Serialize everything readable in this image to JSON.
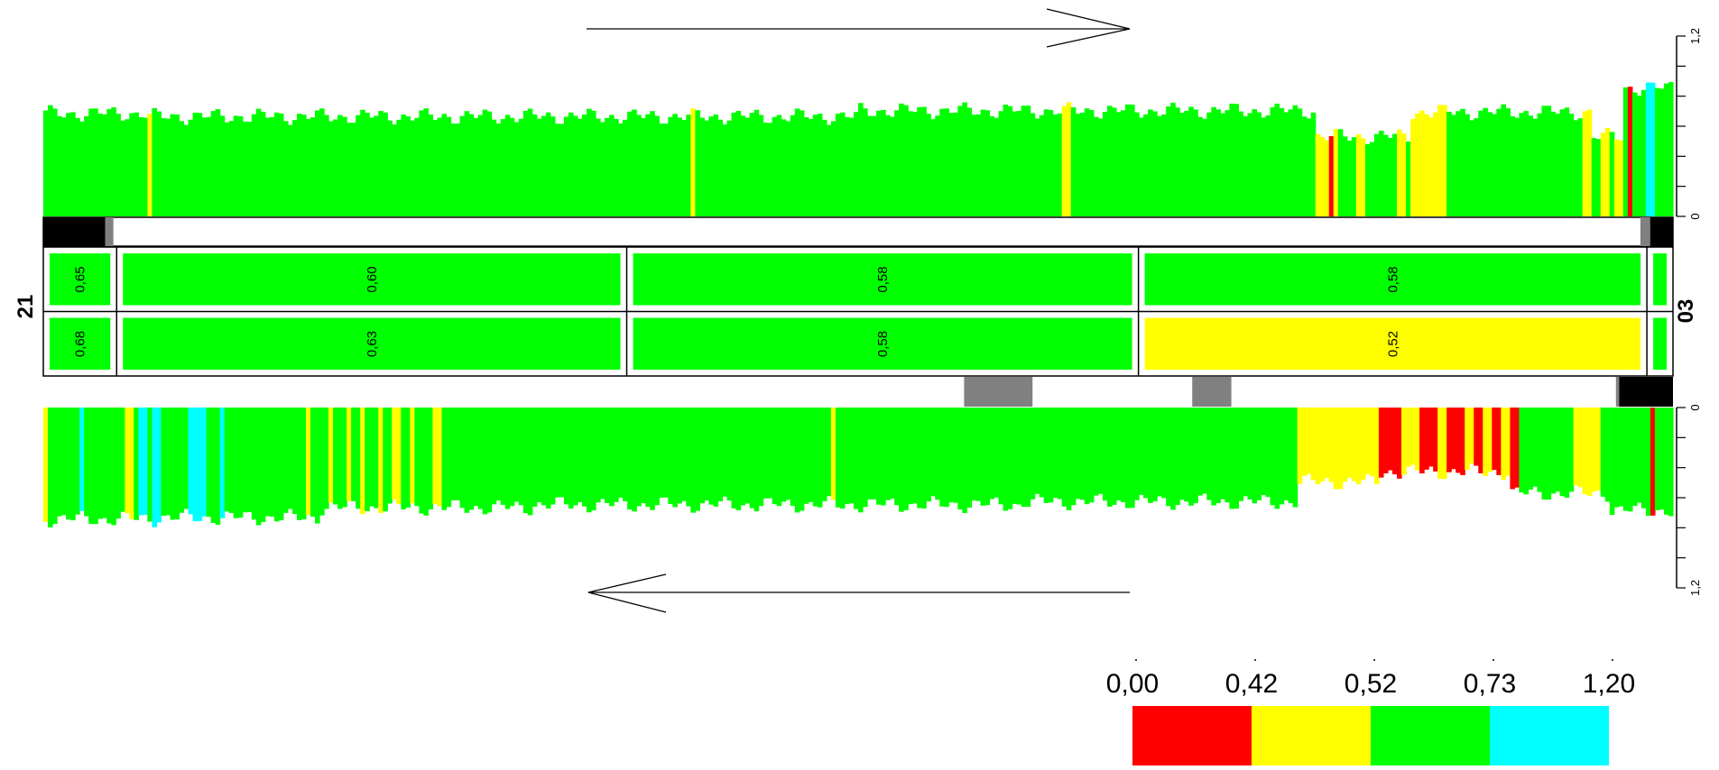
{
  "chart_data": {
    "type": "bar",
    "chromosome_labels": {
      "left": "21",
      "right": "03"
    },
    "colors": {
      "red": "#ff0000",
      "yellow": "#ffff00",
      "green": "#00ff00",
      "cyan": "#00ffff",
      "gray": "#808080",
      "black": "#000000"
    },
    "scale": {
      "breaks": [
        "0,00",
        "0,42",
        "0,52",
        "0,73",
        "1,20"
      ],
      "values": [
        0.0,
        0.42,
        0.52,
        0.73,
        1.2
      ],
      "colors": [
        "#ff0000",
        "#ffff00",
        "#00ff00",
        "#00ffff"
      ]
    },
    "axis": {
      "ylim": [
        0,
        1.2
      ],
      "ticks": [
        0,
        1.2
      ],
      "tick_labels": [
        "0",
        "1,2"
      ]
    },
    "top_strand": {
      "direction": "right",
      "n": 360,
      "segments": [
        {
          "from": 0.0,
          "to": 0.065,
          "level": 0.72
        },
        {
          "from": 0.065,
          "to": 0.5,
          "level": 0.7
        },
        {
          "from": 0.5,
          "to": 0.78,
          "level": 0.74
        },
        {
          "from": 0.78,
          "to": 0.84,
          "level": 0.56
        },
        {
          "from": 0.84,
          "to": 0.95,
          "level": 0.73
        },
        {
          "from": 0.95,
          "to": 0.97,
          "level": 0.56
        },
        {
          "from": 0.97,
          "to": 1.0,
          "level": 0.9
        }
      ],
      "bands": [
        {
          "from": 0.063,
          "to": 0.066,
          "color": "yellow"
        },
        {
          "from": 0.396,
          "to": 0.4,
          "color": "yellow"
        },
        {
          "from": 0.626,
          "to": 0.63,
          "color": "yellow"
        },
        {
          "from": 0.78,
          "to": 0.795,
          "color": "yellow"
        },
        {
          "from": 0.788,
          "to": 0.791,
          "color": "red"
        },
        {
          "from": 0.805,
          "to": 0.81,
          "color": "yellow"
        },
        {
          "from": 0.83,
          "to": 0.836,
          "color": "yellow"
        },
        {
          "from": 0.84,
          "to": 0.862,
          "color": "yellow"
        },
        {
          "from": 0.945,
          "to": 0.95,
          "color": "yellow"
        },
        {
          "from": 0.955,
          "to": 0.96,
          "color": "yellow"
        },
        {
          "from": 0.963,
          "to": 0.97,
          "color": "yellow"
        },
        {
          "from": 0.972,
          "to": 0.976,
          "color": "red"
        },
        {
          "from": 0.982,
          "to": 0.988,
          "color": "cyan"
        }
      ]
    },
    "bottom_strand": {
      "direction": "left",
      "n": 360,
      "segments": [
        {
          "from": 0.0,
          "to": 0.07,
          "level": 0.78
        },
        {
          "from": 0.07,
          "to": 0.17,
          "level": 0.77
        },
        {
          "from": 0.17,
          "to": 0.3,
          "level": 0.7
        },
        {
          "from": 0.3,
          "to": 0.6,
          "level": 0.68
        },
        {
          "from": 0.6,
          "to": 0.77,
          "level": 0.66
        },
        {
          "from": 0.77,
          "to": 0.82,
          "level": 0.52
        },
        {
          "from": 0.82,
          "to": 0.9,
          "level": 0.45
        },
        {
          "from": 0.9,
          "to": 0.96,
          "level": 0.6
        },
        {
          "from": 0.96,
          "to": 1.0,
          "level": 0.72
        }
      ],
      "bands": [
        {
          "from": 0.0,
          "to": 0.004,
          "color": "yellow"
        },
        {
          "from": 0.023,
          "to": 0.026,
          "color": "cyan"
        },
        {
          "from": 0.05,
          "to": 0.055,
          "color": "yellow"
        },
        {
          "from": 0.057,
          "to": 0.064,
          "color": "cyan"
        },
        {
          "from": 0.068,
          "to": 0.071,
          "color": "cyan"
        },
        {
          "from": 0.088,
          "to": 0.1,
          "color": "cyan"
        },
        {
          "from": 0.108,
          "to": 0.111,
          "color": "cyan"
        },
        {
          "from": 0.16,
          "to": 0.165,
          "color": "yellow"
        },
        {
          "from": 0.175,
          "to": 0.179,
          "color": "yellow"
        },
        {
          "from": 0.185,
          "to": 0.19,
          "color": "yellow"
        },
        {
          "from": 0.195,
          "to": 0.198,
          "color": "yellow"
        },
        {
          "from": 0.205,
          "to": 0.208,
          "color": "yellow"
        },
        {
          "from": 0.215,
          "to": 0.219,
          "color": "yellow"
        },
        {
          "from": 0.225,
          "to": 0.229,
          "color": "yellow"
        },
        {
          "from": 0.24,
          "to": 0.244,
          "color": "yellow"
        },
        {
          "from": 0.484,
          "to": 0.486,
          "color": "yellow"
        },
        {
          "from": 0.77,
          "to": 0.82,
          "color": "yellow"
        },
        {
          "from": 0.82,
          "to": 0.832,
          "color": "red"
        },
        {
          "from": 0.832,
          "to": 0.845,
          "color": "yellow"
        },
        {
          "from": 0.845,
          "to": 0.855,
          "color": "red"
        },
        {
          "from": 0.855,
          "to": 0.862,
          "color": "yellow"
        },
        {
          "from": 0.862,
          "to": 0.872,
          "color": "red"
        },
        {
          "from": 0.872,
          "to": 0.877,
          "color": "yellow"
        },
        {
          "from": 0.877,
          "to": 0.883,
          "color": "red"
        },
        {
          "from": 0.883,
          "to": 0.888,
          "color": "yellow"
        },
        {
          "from": 0.888,
          "to": 0.894,
          "color": "red"
        },
        {
          "from": 0.894,
          "to": 0.9,
          "color": "yellow"
        },
        {
          "from": 0.9,
          "to": 0.906,
          "color": "red"
        },
        {
          "from": 0.94,
          "to": 0.955,
          "color": "yellow"
        },
        {
          "from": 0.985,
          "to": 0.99,
          "color": "red"
        }
      ]
    },
    "top_track_blocks": [
      {
        "from": 0.0,
        "to": 0.038,
        "color": "black"
      },
      {
        "from": 0.038,
        "to": 0.043,
        "color": "gray"
      },
      {
        "from": 0.98,
        "to": 0.986,
        "color": "gray"
      },
      {
        "from": 0.986,
        "to": 1.0,
        "color": "black"
      }
    ],
    "bottom_track_blocks": [
      {
        "from": 0.565,
        "to": 0.607,
        "color": "gray"
      },
      {
        "from": 0.705,
        "to": 0.729,
        "color": "gray"
      },
      {
        "from": 0.965,
        "to": 0.967,
        "color": "gray"
      },
      {
        "from": 0.967,
        "to": 1.0,
        "color": "black"
      }
    ],
    "windows": [
      {
        "from": 0.0,
        "to": 0.045,
        "top_label": "0,65",
        "bottom_label": "0,68",
        "top_color": "green",
        "bottom_color": "green"
      },
      {
        "from": 0.045,
        "to": 0.358,
        "top_label": "0,60",
        "bottom_label": "0,63",
        "top_color": "green",
        "bottom_color": "green"
      },
      {
        "from": 0.358,
        "to": 0.672,
        "top_label": "0,58",
        "bottom_label": "0,58",
        "top_color": "green",
        "bottom_color": "green"
      },
      {
        "from": 0.672,
        "to": 0.984,
        "top_label": "0,58",
        "bottom_label": "0,52",
        "top_color": "green",
        "bottom_color": "yellow"
      },
      {
        "from": 0.984,
        "to": 1.0,
        "top_label": "",
        "bottom_label": "",
        "top_color": "green",
        "bottom_color": "green"
      }
    ]
  }
}
